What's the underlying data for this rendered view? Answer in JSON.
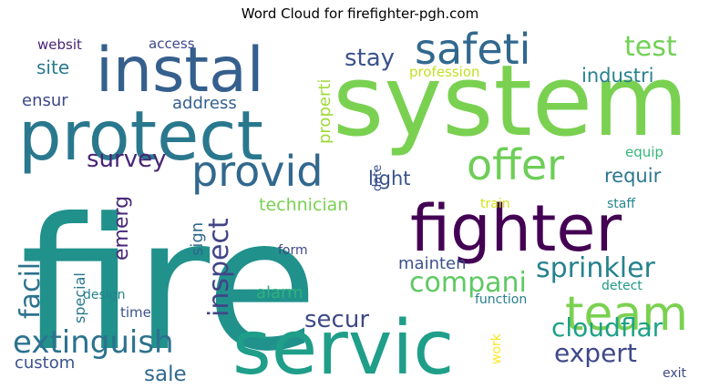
{
  "chart_data": {
    "type": "wordcloud",
    "title": "Word Cloud for firefighter-pgh.com",
    "palette": "viridis",
    "words": [
      {
        "text": "fire",
        "weight": 1.0,
        "color": "#21918c",
        "rotate": false
      },
      {
        "text": "system",
        "weight": 0.58,
        "color": "#7ad151",
        "rotate": false
      },
      {
        "text": "servic",
        "weight": 0.5,
        "color": "#1f9e89",
        "rotate": false
      },
      {
        "text": "protect",
        "weight": 0.46,
        "color": "#2a788e",
        "rotate": false
      },
      {
        "text": "instal",
        "weight": 0.42,
        "color": "#355f8d",
        "rotate": false
      },
      {
        "text": "fighter",
        "weight": 0.42,
        "color": "#440154",
        "rotate": false
      },
      {
        "text": "team",
        "weight": 0.38,
        "color": "#7ad151",
        "rotate": false
      },
      {
        "text": "safeti",
        "weight": 0.28,
        "color": "#31688e",
        "rotate": false
      },
      {
        "text": "offer",
        "weight": 0.28,
        "color": "#6ece58",
        "rotate": false
      },
      {
        "text": "provid",
        "weight": 0.28,
        "color": "#31688e",
        "rotate": false
      },
      {
        "text": "extinguish",
        "weight": 0.22,
        "color": "#2c728e",
        "rotate": false
      },
      {
        "text": "sprinkler",
        "weight": 0.19,
        "color": "#26828e",
        "rotate": false
      },
      {
        "text": "compani",
        "weight": 0.19,
        "color": "#5ec962",
        "rotate": false
      },
      {
        "text": "cloudflar",
        "weight": 0.18,
        "color": "#1fa187",
        "rotate": false
      },
      {
        "text": "test",
        "weight": 0.18,
        "color": "#73d056",
        "rotate": false
      },
      {
        "text": "stay",
        "weight": 0.17,
        "color": "#3b528b",
        "rotate": false
      },
      {
        "text": "expert",
        "weight": 0.17,
        "color": "#3e4989",
        "rotate": false
      },
      {
        "text": "secur",
        "weight": 0.16,
        "color": "#3e4a89",
        "rotate": false
      },
      {
        "text": "inspect",
        "weight": 0.17,
        "color": "#414487",
        "rotate": true
      },
      {
        "text": "facil",
        "weight": 0.17,
        "color": "#2c728e",
        "rotate": true
      },
      {
        "text": "survey",
        "weight": 0.15,
        "color": "#482576",
        "rotate": false
      },
      {
        "text": "industri",
        "weight": 0.14,
        "color": "#26818e",
        "rotate": false
      },
      {
        "text": "requir",
        "weight": 0.14,
        "color": "#2a768e",
        "rotate": false
      },
      {
        "text": "light",
        "weight": 0.14,
        "color": "#3b528b",
        "rotate": false
      },
      {
        "text": "sale",
        "weight": 0.14,
        "color": "#31688e",
        "rotate": false
      },
      {
        "text": "emerg",
        "weight": 0.13,
        "color": "#482878",
        "rotate": true
      },
      {
        "text": "site",
        "weight": 0.12,
        "color": "#2a788e",
        "rotate": false
      },
      {
        "text": "custom",
        "weight": 0.12,
        "color": "#3b528b",
        "rotate": false
      },
      {
        "text": "ensur",
        "weight": 0.1,
        "color": "#3f4788",
        "rotate": false
      },
      {
        "text": "address",
        "weight": 0.1,
        "color": "#35608d",
        "rotate": false
      },
      {
        "text": "technician",
        "weight": 0.11,
        "color": "#7ad151",
        "rotate": false
      },
      {
        "text": "alarm",
        "weight": 0.1,
        "color": "#2db27d",
        "rotate": false
      },
      {
        "text": "properti",
        "weight": 0.1,
        "color": "#a0da39",
        "rotate": true
      },
      {
        "text": "special",
        "weight": 0.09,
        "color": "#2a788e",
        "rotate": true
      },
      {
        "text": "sign",
        "weight": 0.09,
        "color": "#31688e",
        "rotate": true
      },
      {
        "text": "mainten",
        "weight": 0.09,
        "color": "#3b528b",
        "rotate": false
      },
      {
        "text": "equip",
        "weight": 0.08,
        "color": "#35b779",
        "rotate": false
      },
      {
        "text": "profession",
        "weight": 0.08,
        "color": "#c2df23",
        "rotate": false
      },
      {
        "text": "websit",
        "weight": 0.08,
        "color": "#482475",
        "rotate": false
      },
      {
        "text": "access",
        "weight": 0.08,
        "color": "#3e4989",
        "rotate": false
      },
      {
        "text": "time",
        "weight": 0.08,
        "color": "#3b528b",
        "rotate": false
      },
      {
        "text": "design",
        "weight": 0.07,
        "color": "#26828e",
        "rotate": false
      },
      {
        "text": "form",
        "weight": 0.07,
        "color": "#3e4989",
        "rotate": false
      },
      {
        "text": "function",
        "weight": 0.07,
        "color": "#27808e",
        "rotate": false
      },
      {
        "text": "detect",
        "weight": 0.07,
        "color": "#1f9a8a",
        "rotate": false
      },
      {
        "text": "staff",
        "weight": 0.07,
        "color": "#25858e",
        "rotate": false
      },
      {
        "text": "train",
        "weight": 0.07,
        "color": "#d2e21b",
        "rotate": false
      },
      {
        "text": "date",
        "weight": 0.06,
        "color": "#3b528b",
        "rotate": true
      },
      {
        "text": "work",
        "weight": 0.06,
        "color": "#fde725",
        "rotate": true
      },
      {
        "text": "exit",
        "weight": 0.07,
        "color": "#3e4989",
        "rotate": false
      }
    ]
  }
}
